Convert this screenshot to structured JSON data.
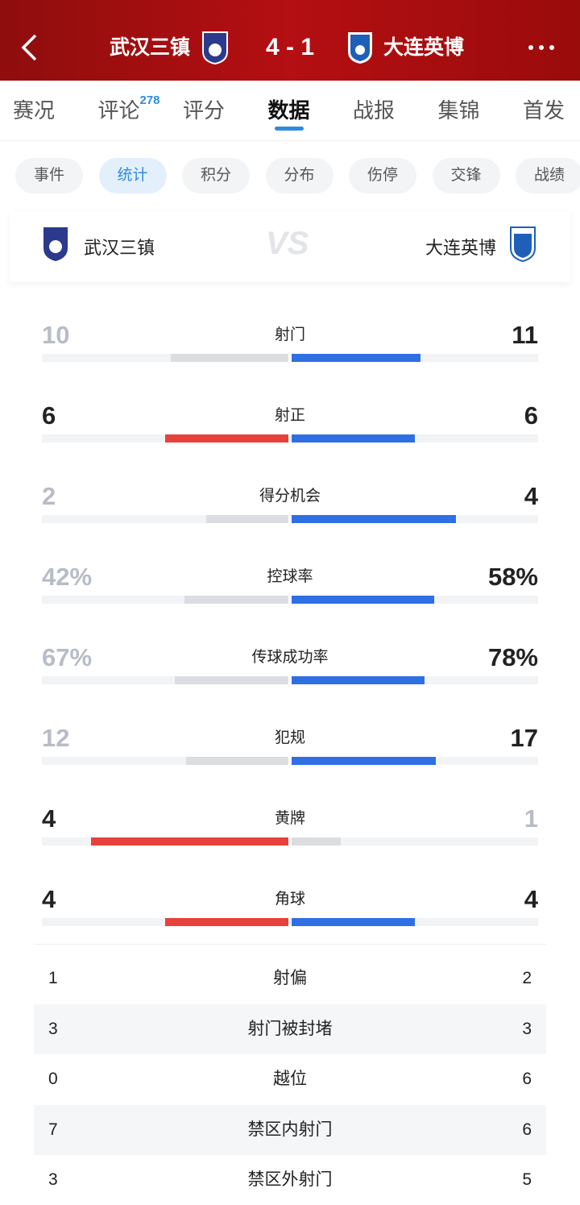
{
  "header": {
    "home": "武汉三镇",
    "score": "4 - 1",
    "away": "大连英博"
  },
  "tabs": {
    "items": [
      "赛况",
      "评论",
      "评分",
      "数据",
      "战报",
      "集锦",
      "首发"
    ],
    "comment_count": "278",
    "active": 3
  },
  "subtabs": {
    "items": [
      "事件",
      "统计",
      "积分",
      "分布",
      "伤停",
      "交锋",
      "战绩"
    ],
    "active": 1
  },
  "teams": {
    "home": "武汉三镇",
    "vs": "VS",
    "away": "大连英博"
  },
  "colors": {
    "home": "#e8413c",
    "away": "#2f6fe4",
    "muted": "#dcdde1",
    "track": "#f2f3f5"
  },
  "bar_stats": [
    {
      "label": "射门",
      "home": 10,
      "away": 11
    },
    {
      "label": "射正",
      "home": 6,
      "away": 6
    },
    {
      "label": "得分机会",
      "home": 2,
      "away": 4
    },
    {
      "label": "控球率",
      "home": 42,
      "away": 58,
      "home_label": "42%",
      "away_label": "58%"
    },
    {
      "label": "传球成功率",
      "home": 67,
      "away": 78,
      "home_label": "67%",
      "away_label": "78%"
    },
    {
      "label": "犯规",
      "home": 12,
      "away": 17
    },
    {
      "label": "黄牌",
      "home": 4,
      "away": 1
    },
    {
      "label": "角球",
      "home": 4,
      "away": 4
    }
  ],
  "table": {
    "rows": [
      [
        "射偏",
        1,
        2
      ],
      [
        "射门被封堵",
        3,
        3
      ],
      [
        "越位",
        0,
        6
      ],
      [
        "禁区内射门",
        7,
        6
      ],
      [
        "禁区外射门",
        3,
        5
      ]
    ]
  }
}
